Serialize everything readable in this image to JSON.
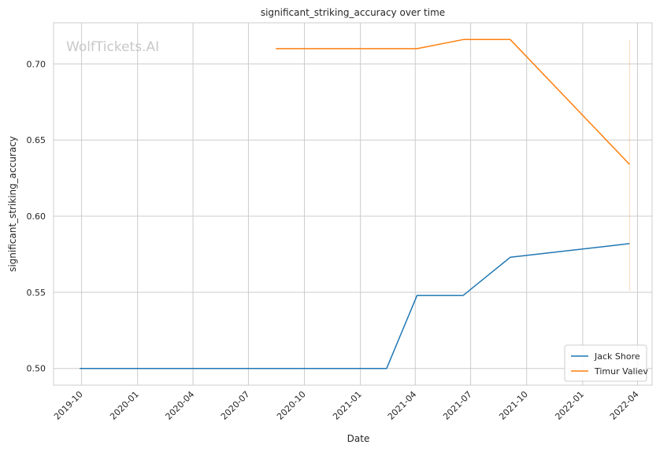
{
  "watermark": "WolfTickets.AI",
  "chart_data": {
    "type": "line",
    "title": "significant_striking_accuracy over time",
    "xlabel": "Date",
    "ylabel": "significant_striking_accuracy",
    "grid": true,
    "legend_position": "lower-right",
    "xlim": [
      "2019-08-16",
      "2022-04-25"
    ],
    "ylim": [
      0.489,
      0.727
    ],
    "x_ticks": [
      "2019-10",
      "2020-01",
      "2020-04",
      "2020-07",
      "2020-10",
      "2021-01",
      "2021-04",
      "2021-07",
      "2021-10",
      "2022-01",
      "2022-04"
    ],
    "y_ticks": [
      0.5,
      0.55,
      0.6,
      0.65,
      0.7
    ],
    "y_tick_labels": [
      "0.50",
      "0.55",
      "0.60",
      "0.65",
      "0.70"
    ],
    "series": [
      {
        "name": "Jack Shore",
        "color": "#1f77b4",
        "x": [
          "2019-09-28",
          "2021-02-13",
          "2021-04-04",
          "2021-06-19",
          "2021-09-04",
          "2022-03-19"
        ],
        "y": [
          0.5,
          0.5,
          0.548,
          0.548,
          0.573,
          0.582
        ]
      },
      {
        "name": "Timur Valiev",
        "color": "#ff7f0e",
        "x": [
          "2020-08-15",
          "2021-04-04",
          "2021-06-19",
          "2021-09-04",
          "2022-03-19"
        ],
        "y": [
          0.71,
          0.71,
          0.716,
          0.716,
          0.634
        ]
      }
    ],
    "annotations": [
      {
        "type": "vertical-line",
        "x": "2022-03-19",
        "y_range": [
          0.551,
          0.716
        ],
        "color": "#ff7f0e",
        "opacity": 0.3
      }
    ]
  }
}
